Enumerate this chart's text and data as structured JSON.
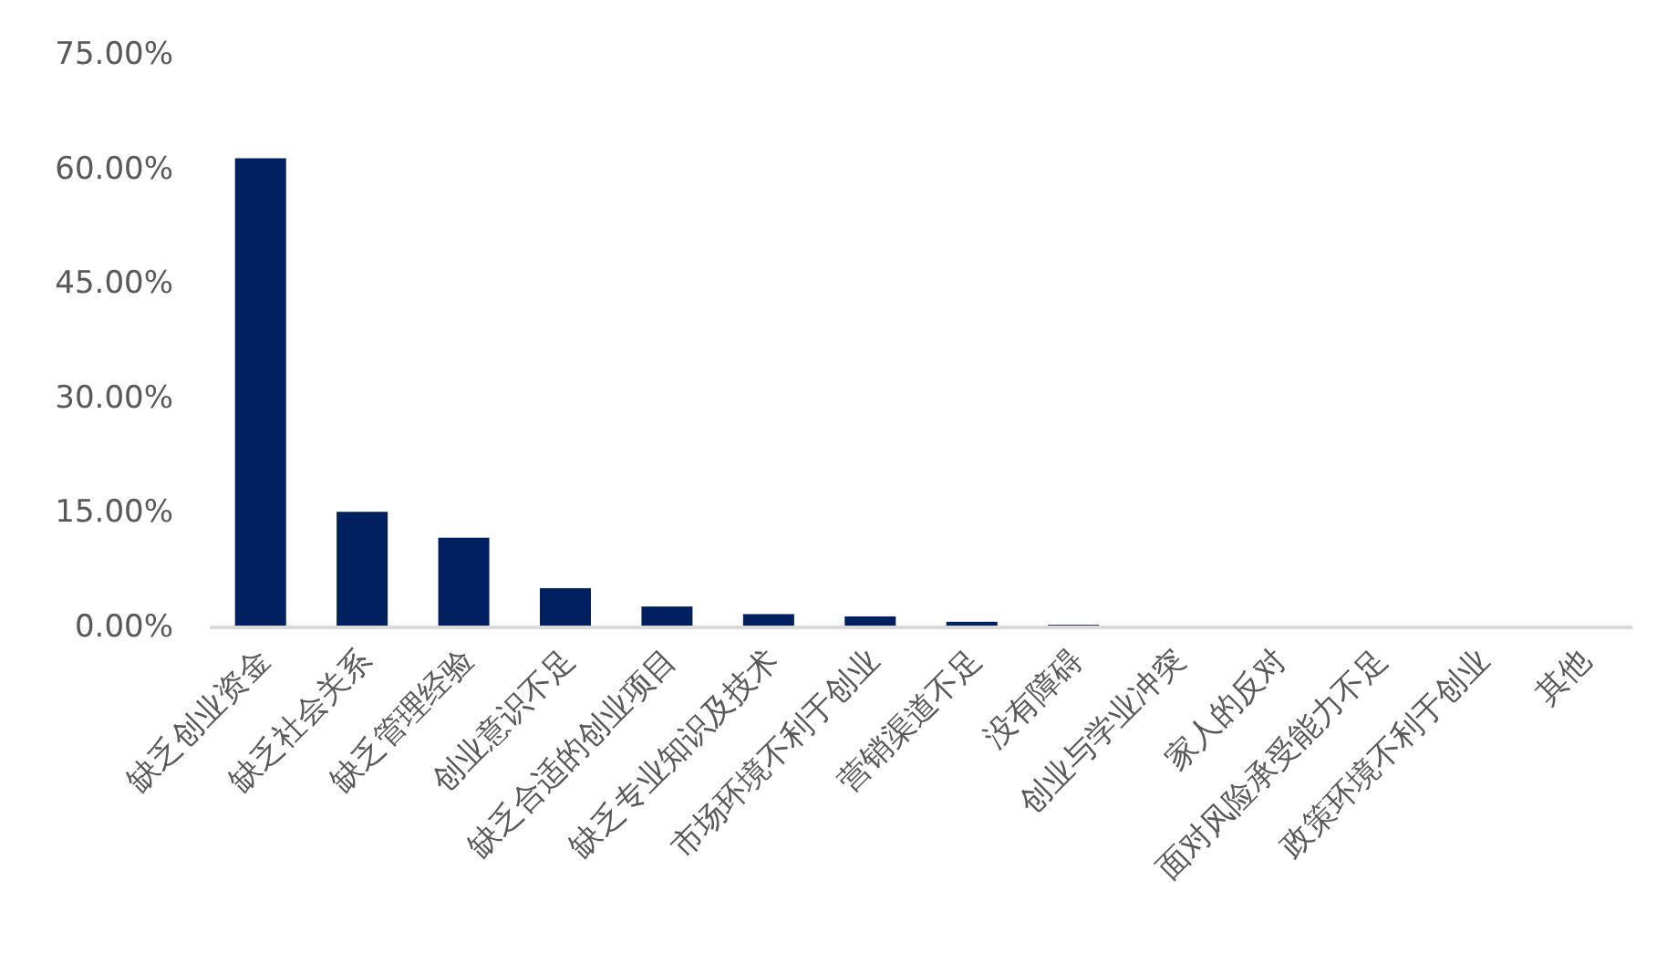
{
  "chart_data": {
    "type": "bar",
    "categories": [
      "缺乏创业资金",
      "缺乏社会关系",
      "缺乏管理经验",
      "创业意识不足",
      "缺乏合适的创业项目",
      "缺乏专业知识及技术",
      "市场环境不利于创业",
      "营销渠道不足",
      "没有障碍",
      "创业与学业冲突",
      "家人的反对",
      "面对风险承受能力不足",
      "政策环境不利于创业",
      "其他"
    ],
    "values": [
      61.2,
      14.9,
      11.5,
      4.9,
      2.5,
      1.5,
      1.2,
      0.5,
      0.1,
      0,
      0,
      0,
      0,
      0
    ],
    "color": "#002060",
    "ylim": [
      0,
      75
    ],
    "yticks": [
      {
        "value": 0,
        "label": "0.00%"
      },
      {
        "value": 15,
        "label": "15.00%"
      },
      {
        "value": 30,
        "label": "30.00%"
      },
      {
        "value": 45,
        "label": "45.00%"
      },
      {
        "value": 60,
        "label": "60.00%"
      },
      {
        "value": 75,
        "label": "75.00%"
      }
    ],
    "grid": false
  }
}
